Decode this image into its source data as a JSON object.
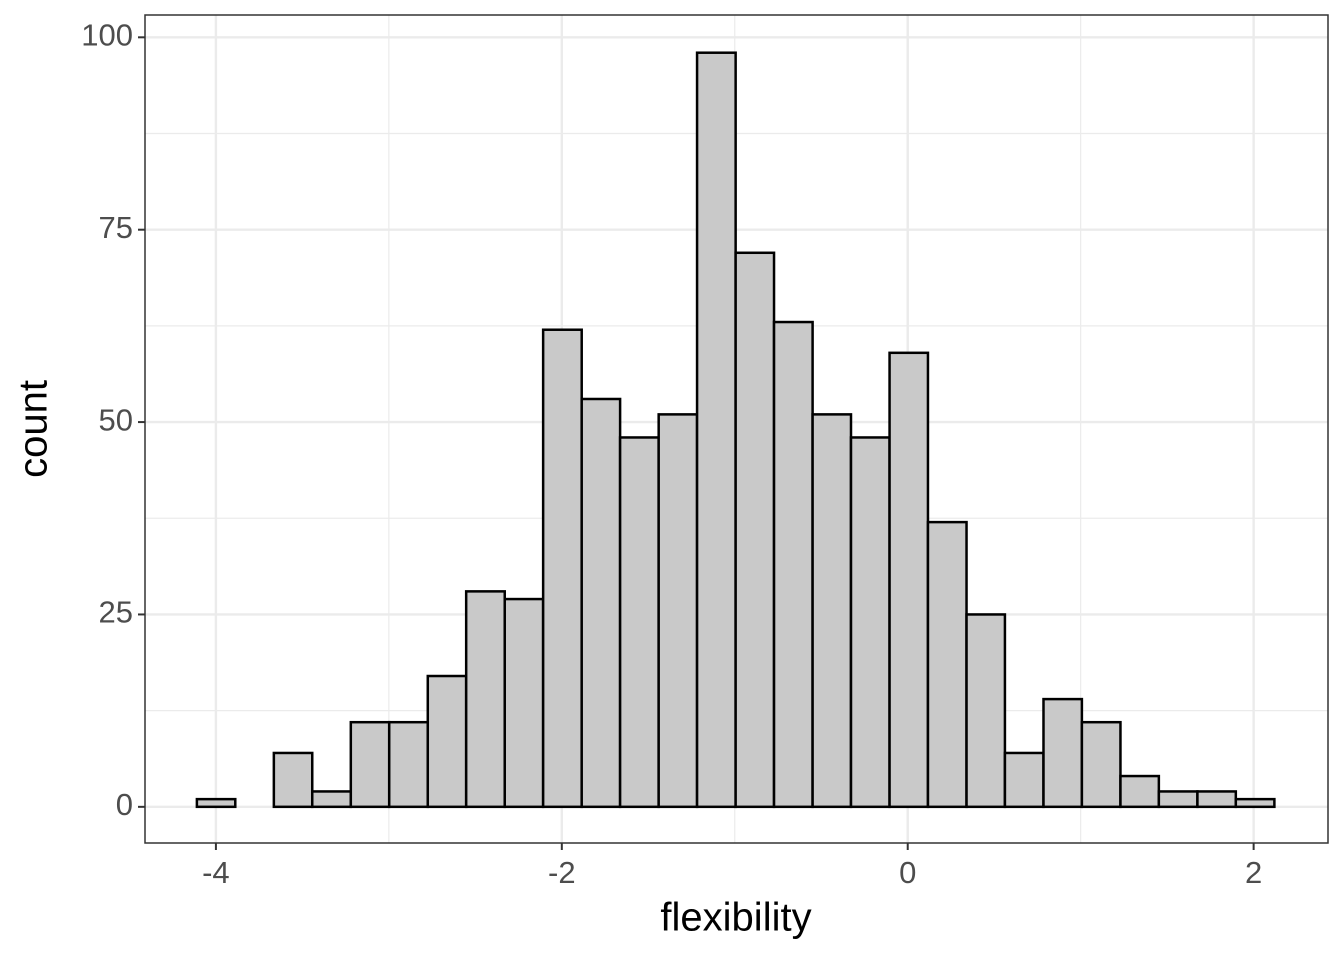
{
  "chart_data": {
    "type": "histogram",
    "x_label": "flexibility",
    "y_label": "count",
    "bins": [
      -4.11,
      -3.888,
      -3.665,
      -3.443,
      -3.22,
      -2.998,
      -2.775,
      -2.553,
      -2.33,
      -2.108,
      -1.885,
      -1.663,
      -1.44,
      -1.218,
      -0.995,
      -0.773,
      -0.55,
      -0.328,
      -0.105,
      0.117,
      0.34,
      0.562,
      0.785,
      1.007,
      1.23,
      1.452,
      1.675,
      1.897,
      2.12
    ],
    "values": [
      1,
      0,
      7,
      2,
      11,
      11,
      17,
      28,
      27,
      62,
      53,
      48,
      51,
      98,
      72,
      63,
      51,
      48,
      59,
      37,
      25,
      7,
      14,
      11,
      4,
      2,
      2,
      1
    ],
    "color": "#c9c9c9",
    "edge_color": "#000000",
    "xlim": [
      -4.41,
      2.43
    ],
    "ylim": [
      -4.7,
      102.9
    ],
    "xticks": [
      -4,
      -2,
      0,
      2
    ],
    "yticks": [
      0,
      25,
      50,
      75,
      100
    ],
    "x_minor_grid": [
      -3,
      -1,
      1
    ],
    "y_minor_grid": [
      12.5,
      37.5,
      62.5,
      87.5
    ],
    "grid": true
  }
}
